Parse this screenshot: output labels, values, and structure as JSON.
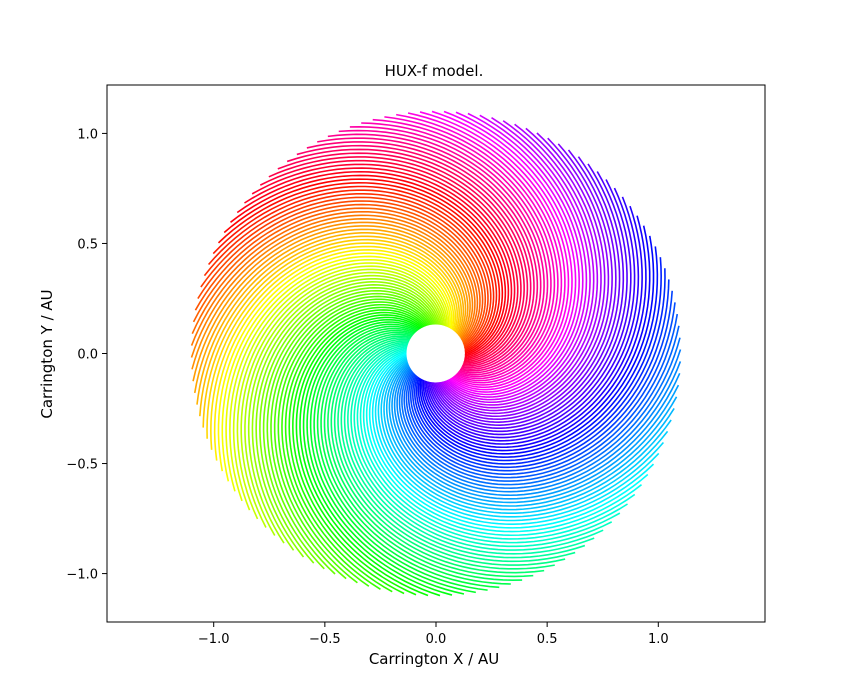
{
  "chart_data": {
    "type": "line",
    "title": "HUX-f model.",
    "xlabel": "Carrington X / AU",
    "ylabel": "Carrington Y / AU",
    "xlim": [
      -1.48,
      1.48
    ],
    "ylim": [
      -1.22,
      1.22
    ],
    "xticks": [
      -1.0,
      -0.5,
      0.0,
      0.5,
      1.0
    ],
    "yticks": [
      -1.0,
      -0.5,
      0.0,
      0.5,
      1.0
    ],
    "xtick_labels": [
      "−1.0",
      "−0.5",
      "0.0",
      "0.5",
      "1.0"
    ],
    "ytick_labels": [
      "−1.0",
      "−0.5",
      "0.0",
      "0.5",
      "1.0"
    ],
    "grid": false,
    "legend": "none",
    "colormap": "hsv",
    "inner_radius_au": 0.13,
    "outer_radius_au": 1.1,
    "num_streamlines": 128,
    "streamline_sweep_deg": 150
  }
}
